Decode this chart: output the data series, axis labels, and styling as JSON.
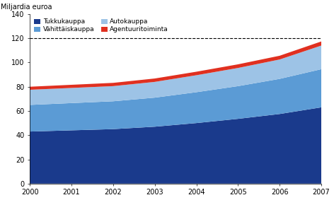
{
  "years": [
    2000,
    2001,
    2002,
    2003,
    2004,
    2005,
    2006,
    2007
  ],
  "tukkukauppa": [
    43.0,
    44.0,
    45.0,
    47.0,
    50.0,
    53.5,
    57.5,
    63.0
  ],
  "vahittaiskauppa": [
    22.0,
    22.5,
    23.0,
    24.0,
    25.5,
    27.0,
    29.0,
    31.5
  ],
  "autokauppa": [
    12.5,
    12.5,
    12.5,
    13.0,
    14.0,
    15.0,
    16.0,
    19.5
  ],
  "agentuuritoiminta": [
    2.5,
    2.6,
    2.7,
    2.8,
    2.9,
    3.0,
    3.1,
    3.4
  ],
  "color_tukku": "#1a3a8c",
  "color_vahittais": "#5b9bd5",
  "color_auto": "#9dc3e6",
  "color_agentuuri": "#e03020",
  "ylabel": "Miljardia euroa",
  "ylim": [
    0,
    140
  ],
  "yticks": [
    0,
    20,
    40,
    60,
    80,
    100,
    120,
    140
  ],
  "dashed_line_y": 120,
  "bg_color": "#ffffff",
  "legend_labels": [
    "Tukkukauppa",
    "Vähittäiskauppa",
    "Autokauppa",
    "Agentuuritoiminta"
  ]
}
